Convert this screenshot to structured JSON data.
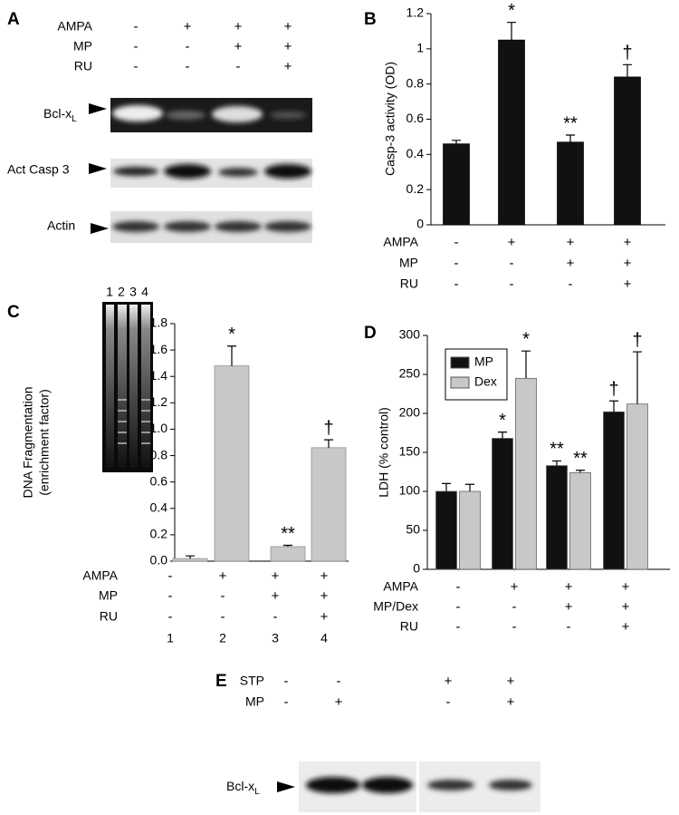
{
  "blot_a": {
    "label": "A",
    "treatments": [
      {
        "name": "AMPA",
        "values": [
          "-",
          "+",
          "+",
          "+"
        ]
      },
      {
        "name": "MP",
        "values": [
          "-",
          "-",
          "+",
          "+"
        ]
      },
      {
        "name": "RU",
        "values": [
          "-",
          "-",
          "-",
          "+"
        ]
      }
    ],
    "rows": [
      {
        "name": "Bcl-x",
        "sub": "L"
      },
      {
        "name": "Act Casp 3"
      },
      {
        "name": "Actin"
      }
    ]
  },
  "chart_data": [
    {
      "type": "bar",
      "label": "B",
      "ylabel": "Casp-3 activity (OD)",
      "color": "#111111",
      "values": [
        0.46,
        1.05,
        0.47,
        0.84
      ],
      "errors": [
        0.02,
        0.1,
        0.04,
        0.07
      ],
      "annotations": [
        null,
        "*",
        "**",
        "†"
      ],
      "ylim": [
        0,
        1.2
      ],
      "yticks": [
        0,
        0.2,
        0.4,
        0.6,
        0.8,
        1,
        1.2
      ],
      "treatments": [
        {
          "name": "AMPA",
          "values": [
            "-",
            "+",
            "+",
            "+"
          ]
        },
        {
          "name": "MP",
          "values": [
            "-",
            "-",
            "+",
            "+"
          ]
        },
        {
          "name": "RU",
          "values": [
            "-",
            "-",
            "-",
            "+"
          ]
        }
      ]
    },
    {
      "type": "bar",
      "label": "C",
      "ylabel": [
        "DNA Fragmentation",
        "(enrichment factor)"
      ],
      "color": "#c8c8c8",
      "values": [
        0.02,
        1.48,
        0.11,
        0.86
      ],
      "errors": [
        0.02,
        0.15,
        0.01,
        0.06
      ],
      "annotations": [
        null,
        "*",
        "**",
        "†"
      ],
      "ylim": [
        0,
        1.8
      ],
      "yticks": [
        {
          "value": 0,
          "label": "0.0"
        },
        {
          "value": 0.2,
          "label": "0.2"
        },
        {
          "value": 0.4,
          "label": "0.4"
        },
        {
          "value": 0.6,
          "label": "0.6"
        },
        {
          "value": 0.8,
          "label": "0.8"
        },
        {
          "value": 1,
          "label": "1.0"
        },
        {
          "value": 1.2,
          "label": "1.2"
        },
        {
          "value": 1.4,
          "label": "1.4"
        },
        {
          "value": 1.6,
          "label": "1.6"
        },
        {
          "value": 1.8,
          "label": "1.8"
        }
      ],
      "inset_lanes": [
        "1",
        "2",
        "3",
        "4"
      ],
      "treatments": [
        {
          "name": "AMPA",
          "values": [
            "-",
            "+",
            "+",
            "+"
          ]
        },
        {
          "name": "MP",
          "values": [
            "-",
            "-",
            "+",
            "+"
          ]
        },
        {
          "name": "RU",
          "values": [
            "-",
            "-",
            "-",
            "+"
          ]
        }
      ],
      "lane_numbers": [
        "1",
        "2",
        "3",
        "4"
      ]
    },
    {
      "type": "grouped_bar",
      "label": "D",
      "ylabel": "LDH (% control)",
      "legend": "upper left",
      "series": [
        {
          "name": "MP",
          "color": "#111111",
          "values": [
            100,
            168,
            133,
            202
          ],
          "errors": [
            10,
            8,
            6,
            14
          ],
          "annotations": [
            null,
            "*",
            "**",
            "†"
          ]
        },
        {
          "name": "Dex",
          "color": "#c8c8c8",
          "values": [
            100,
            245,
            124,
            212
          ],
          "errors": [
            9,
            35,
            3,
            67
          ],
          "annotations": [
            null,
            "*",
            "**",
            "†"
          ]
        }
      ],
      "ylim": [
        0,
        300
      ],
      "yticks": [
        0,
        50,
        100,
        150,
        200,
        250,
        300
      ],
      "treatments": [
        {
          "name": "AMPA",
          "values": [
            "-",
            "+",
            "+",
            "+"
          ]
        },
        {
          "name": "MP/Dex",
          "values": [
            "-",
            "-",
            "+",
            "+"
          ]
        },
        {
          "name": "RU",
          "values": [
            "-",
            "-",
            "-",
            "+"
          ]
        }
      ]
    }
  ],
  "blot_e": {
    "label": "E",
    "treatments": [
      {
        "name": "STP",
        "values": [
          "-",
          "-",
          "+",
          "+"
        ]
      },
      {
        "name": "MP",
        "values": [
          "-",
          "+",
          "-",
          "+"
        ]
      }
    ],
    "row": {
      "name": "Bcl-x",
      "sub": "L"
    }
  }
}
